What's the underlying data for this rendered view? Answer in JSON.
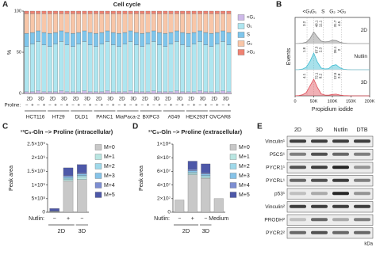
{
  "panel_labels": [
    "A",
    "B",
    "C",
    "D",
    "E"
  ],
  "chart_data": [
    {
      "type": "stacked_bar",
      "title": "Cell cycle",
      "ylabel": "%",
      "category_label": "Proline:",
      "categories": [
        "−",
        "+",
        "−",
        "+",
        "−",
        "+",
        "−",
        "+",
        "−",
        "+",
        "−",
        "+",
        "−",
        "+",
        "−",
        "+",
        "−",
        "+",
        "−",
        "+",
        "−",
        "+",
        "−",
        "+",
        "−",
        "+",
        "−",
        "+",
        "−",
        "+",
        "−",
        "+",
        "−",
        "+",
        "−",
        "+"
      ],
      "conditions": [
        "2D",
        "3D",
        "2D",
        "3D",
        "2D",
        "3D",
        "2D",
        "3D",
        "2D",
        "3D",
        "2D",
        "3D",
        "2D",
        "3D",
        "2D",
        "3D",
        "2D",
        "3D"
      ],
      "groups": [
        "HCT116",
        "HT29",
        "DLD1",
        "PANC1",
        "MiaPaca-2",
        "BXPC3",
        "A549",
        "HEK293T",
        "OVCAR8"
      ],
      "ylim": [
        0,
        100
      ],
      "yticks": [
        0,
        50,
        100
      ],
      "series": [
        {
          "name": "<G₁",
          "color": "#cdb9e8",
          "values": [
            2,
            2,
            3,
            2,
            2,
            2,
            3,
            2,
            2,
            2,
            3,
            2,
            2,
            2,
            3,
            2,
            2,
            2,
            3,
            2,
            2,
            2,
            3,
            2,
            2,
            2,
            3,
            2,
            2,
            2,
            3,
            2,
            2,
            2,
            3,
            2
          ]
        },
        {
          "name": "G₁",
          "color": "#aee6f0",
          "values": [
            55,
            58,
            60,
            57,
            55,
            58,
            60,
            57,
            55,
            58,
            60,
            57,
            55,
            58,
            60,
            57,
            55,
            58,
            60,
            57,
            55,
            58,
            60,
            57,
            55,
            58,
            60,
            57,
            55,
            58,
            60,
            57,
            55,
            58,
            60,
            57
          ]
        },
        {
          "name": "S",
          "color": "#7fc6ec",
          "values": [
            16,
            14,
            13,
            15,
            16,
            14,
            13,
            15,
            16,
            14,
            13,
            15,
            16,
            14,
            13,
            15,
            16,
            14,
            13,
            15,
            16,
            14,
            13,
            15,
            16,
            14,
            13,
            15,
            16,
            14,
            13,
            15,
            16,
            14,
            13,
            15
          ]
        },
        {
          "name": "G₂",
          "color": "#f8c6a8",
          "values": [
            24,
            23,
            21,
            23,
            24,
            23,
            21,
            23,
            24,
            23,
            21,
            23,
            24,
            23,
            21,
            23,
            24,
            23,
            21,
            23,
            24,
            23,
            21,
            23,
            24,
            23,
            21,
            23,
            24,
            23,
            21,
            23,
            24,
            23,
            21,
            23
          ]
        },
        {
          "name": ">G₂",
          "color": "#ef8272",
          "values": [
            3,
            3,
            3,
            3,
            3,
            3,
            3,
            3,
            3,
            3,
            3,
            3,
            3,
            3,
            3,
            3,
            3,
            3,
            3,
            3,
            3,
            3,
            3,
            3,
            3,
            3,
            3,
            3,
            3,
            3,
            3,
            3,
            3,
            3,
            3,
            3
          ]
        }
      ]
    },
    {
      "type": "density",
      "xlabel": "Propidium iodide",
      "ylabel": "Events",
      "gates": [
        "<G₁",
        "G₁",
        "S",
        "G₂",
        ">G₂"
      ],
      "x": [
        0,
        10000,
        20000,
        30000,
        40000,
        50000,
        60000,
        70000,
        80000,
        90000,
        100000,
        110000,
        120000,
        130000,
        140000,
        150000,
        160000,
        170000,
        180000,
        190000,
        200000
      ],
      "xlim": [
        0,
        200000
      ],
      "xticks": [
        0,
        {
          "value": 50000,
          "label": "50K"
        },
        {
          "value": 100000,
          "label": "100K"
        },
        {
          "value": 150000,
          "label": "150K"
        },
        {
          "value": 200000,
          "label": "200K"
        }
      ],
      "ylim": [
        0,
        100
      ],
      "series": [
        {
          "name": "2D",
          "color": "#8a8a8a",
          "gate_percent": [
            3.2,
            48.1,
            11.1,
            31.7,
            4.5
          ],
          "values": [
            0,
            1,
            3,
            8,
            30,
            70,
            40,
            15,
            10,
            12,
            20,
            18,
            8,
            3,
            1,
            0,
            0,
            0,
            0,
            0,
            0
          ]
        },
        {
          "name": "Nutlin",
          "color": "#3fbcd2",
          "gate_percent": [
            1.8,
            67.3,
            2.3,
            26.1,
            2.0
          ],
          "values": [
            0,
            1,
            4,
            15,
            50,
            100,
            45,
            10,
            5,
            6,
            25,
            30,
            12,
            3,
            1,
            0,
            0,
            0,
            0,
            0,
            0
          ]
        },
        {
          "name": "3D",
          "color": "#e0505a",
          "gate_percent": [
            4.1,
            72.1,
            8.2,
            12.5,
            2.8
          ],
          "values": [
            0,
            2,
            6,
            20,
            60,
            100,
            50,
            12,
            5,
            4,
            8,
            10,
            5,
            2,
            1,
            0,
            0,
            0,
            0,
            0,
            0
          ]
        }
      ]
    },
    {
      "type": "stacked_bar",
      "title": "¹³C₅-Gln –> Proline (intracellular)",
      "ylabel": "Peak area",
      "category_label": "Nutlin:",
      "categories": [
        "−",
        "+",
        "−"
      ],
      "groups": [
        "2D",
        "3D"
      ],
      "ylim": [
        0,
        2500000000
      ],
      "yticks": [
        0,
        {
          "value": 500000000,
          "label": "5×10⁸"
        },
        {
          "value": 1000000000,
          "label": "1×10⁹"
        },
        {
          "value": 1500000000,
          "label": "1.5×10⁹"
        },
        {
          "value": 2000000000,
          "label": "2×10⁹"
        },
        {
          "value": 2500000000,
          "label": "2.5×10⁹"
        }
      ],
      "series": [
        {
          "name": "M+0",
          "color": "#c8c8c8",
          "values": [
            20000000,
            1150000000,
            1200000000
          ]
        },
        {
          "name": "M+1",
          "color": "#b9e6e2",
          "values": [
            5000000,
            50000000,
            100000000
          ]
        },
        {
          "name": "M+2",
          "color": "#9fd9ea",
          "values": [
            5000000,
            50000000,
            50000000
          ]
        },
        {
          "name": "M+3",
          "color": "#86c3e8",
          "values": [
            5000000,
            50000000,
            50000000
          ]
        },
        {
          "name": "M+4",
          "color": "#7d8ed2",
          "values": [
            10000000,
            50000000,
            50000000
          ]
        },
        {
          "name": "M+5",
          "color": "#4d58a8",
          "values": [
            90000000,
            280000000,
            300000000
          ]
        }
      ]
    },
    {
      "type": "stacked_bar",
      "title": "¹³C₅-Gln –> Proline (extracellular)",
      "ylabel": "Peak area",
      "category_label": "Nutlin:",
      "categories": [
        "−",
        "+",
        "−",
        "Medium"
      ],
      "groups": [
        "2D",
        "3D"
      ],
      "ylim": [
        0,
        100000000
      ],
      "yticks": [
        0,
        {
          "value": 20000000,
          "label": "2×10⁷"
        },
        {
          "value": 40000000,
          "label": "4×10⁷"
        },
        {
          "value": 60000000,
          "label": "6×10⁷"
        },
        {
          "value": 80000000,
          "label": "8×10⁷"
        },
        {
          "value": 100000000,
          "label": "1×10⁸"
        }
      ],
      "series": [
        {
          "name": "M+0",
          "color": "#c8c8c8",
          "values": [
            18000000,
            55000000,
            50000000,
            20000000
          ]
        },
        {
          "name": "M+1",
          "color": "#b9e6e2",
          "values": [
            0,
            2000000,
            2000000,
            0
          ]
        },
        {
          "name": "M+2",
          "color": "#9fd9ea",
          "values": [
            0,
            2000000,
            2000000,
            0
          ]
        },
        {
          "name": "M+3",
          "color": "#86c3e8",
          "values": [
            0,
            2000000,
            2000000,
            0
          ]
        },
        {
          "name": "M+4",
          "color": "#7d8ed2",
          "values": [
            0,
            2000000,
            2000000,
            0
          ]
        },
        {
          "name": "M+5",
          "color": "#4d58a8",
          "values": [
            0,
            12000000,
            13000000,
            0
          ]
        }
      ]
    }
  ],
  "blot": {
    "columns": [
      "2D",
      "3D",
      "Nutlin",
      "DTB"
    ],
    "rows": [
      "Vinculin¹",
      "P5CS¹",
      "PYCR1¹",
      "PYCRL¹",
      "p53¹",
      "Vinculin²",
      "PRODH²",
      "PYCR2²"
    ],
    "unit": "kDa"
  }
}
